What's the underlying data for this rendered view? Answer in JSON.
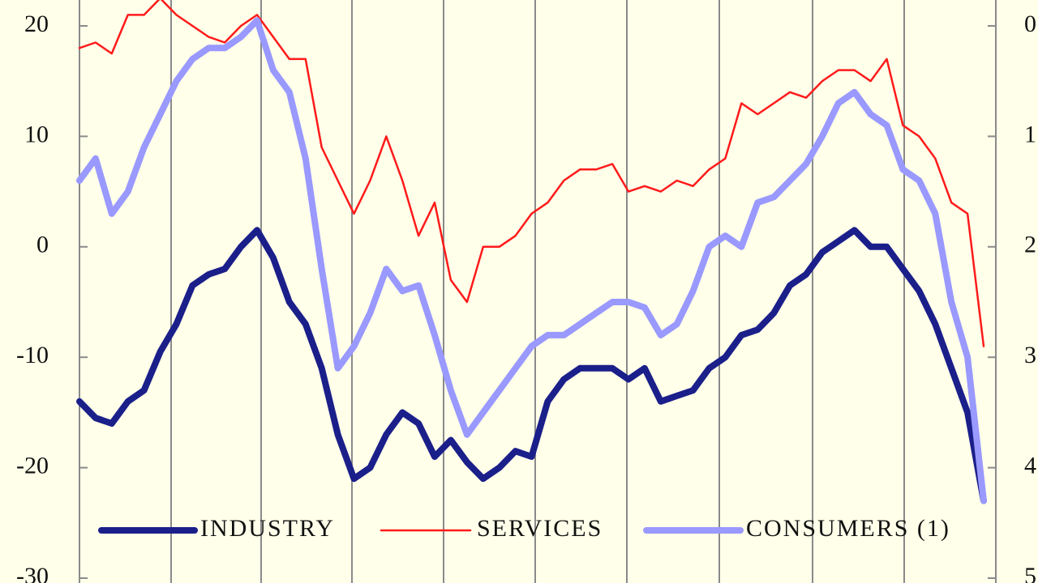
{
  "chart_data": {
    "type": "line",
    "ylim": [
      -30,
      20
    ],
    "yticks": [
      -30,
      -20,
      -10,
      0,
      10,
      20
    ],
    "y2lim": [
      50,
      0
    ],
    "y2ticks": [
      {
        "value": 0,
        "label": "0"
      },
      {
        "value": 10,
        "label": "1"
      },
      {
        "value": 20,
        "label": "2"
      },
      {
        "value": 30,
        "label": "3"
      },
      {
        "value": 40,
        "label": "4"
      },
      {
        "value": 50,
        "label": "5"
      }
    ],
    "series": [
      {
        "name": "INDUSTRY",
        "color": "#1b1f8a",
        "values": [
          -14,
          -15.5,
          -16,
          -14,
          -13,
          -9.5,
          -7,
          -3.5,
          -2.5,
          -2,
          0,
          1.5,
          -1,
          -5,
          -7,
          -11,
          -17,
          -21,
          -20,
          -17,
          -15,
          -16,
          -19,
          -17.5,
          -19.5,
          -21,
          -20,
          -18.5,
          -19,
          -14,
          -12,
          -11,
          -11,
          -11,
          -12,
          -11,
          -14,
          -13.5,
          -13,
          -11,
          -10,
          -8,
          -7.5,
          -6,
          -3.5,
          -2.5,
          -0.5,
          0.5,
          1.5,
          0,
          0,
          -2,
          -4,
          -7,
          -11,
          -15,
          -23
        ]
      },
      {
        "name": "SERVICES",
        "color": "#ff1a1a",
        "values": [
          18,
          18.5,
          17.5,
          21,
          21,
          22.5,
          21,
          20,
          19,
          18.5,
          20,
          21,
          19,
          17,
          17,
          9,
          6,
          3,
          6,
          10,
          6,
          1,
          4,
          -3,
          -5,
          0,
          0,
          1,
          3,
          4,
          6,
          7,
          7,
          7.5,
          5,
          5.5,
          5,
          6,
          5.5,
          7,
          8,
          13,
          12,
          13,
          14,
          13.5,
          15,
          16,
          16,
          15,
          17,
          11,
          10,
          8,
          4,
          3,
          -9
        ]
      },
      {
        "name": "CONSUMERS (1)",
        "color": "#9999ff",
        "values": [
          6,
          8,
          3,
          5,
          9,
          12,
          15,
          17,
          18,
          18,
          19,
          20.5,
          16,
          14,
          8,
          -2,
          -11,
          -9,
          -6,
          -2,
          -4,
          -3.5,
          -8,
          -13,
          -17,
          -15,
          -13,
          -11,
          -9,
          -8,
          -8,
          -7,
          -6,
          -5,
          -5,
          -5.5,
          -8,
          -7,
          -4,
          0,
          1,
          0,
          4,
          4.5,
          6,
          7.5,
          10,
          13,
          14,
          12,
          11,
          7,
          6,
          3,
          -5,
          -10,
          -23
        ]
      }
    ]
  }
}
